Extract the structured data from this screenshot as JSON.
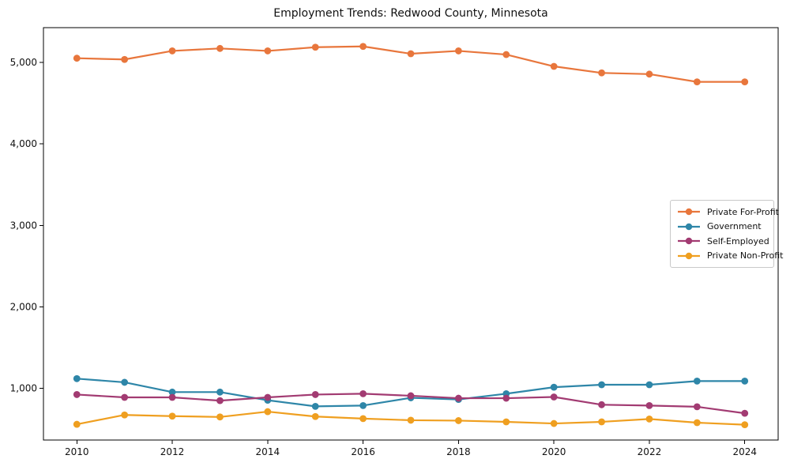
{
  "chart_data": {
    "type": "line",
    "title": "Employment Trends: Redwood County, Minnesota",
    "x": [
      2010,
      2011,
      2012,
      2013,
      2014,
      2015,
      2016,
      2017,
      2018,
      2019,
      2020,
      2021,
      2022,
      2023,
      2024
    ],
    "series": [
      {
        "name": "Private For-Profit",
        "color": "#E8763C",
        "values": [
          5050,
          5035,
          5140,
          5170,
          5140,
          5185,
          5195,
          5105,
          5140,
          5095,
          4950,
          4870,
          4855,
          4760,
          4760
        ]
      },
      {
        "name": "Government",
        "color": "#2E86A8",
        "values": [
          1120,
          1075,
          955,
          955,
          855,
          780,
          790,
          885,
          865,
          935,
          1015,
          1045,
          1045,
          1090,
          1090
        ]
      },
      {
        "name": "Self-Employed",
        "color": "#A23B72",
        "values": [
          925,
          890,
          890,
          850,
          890,
          925,
          935,
          910,
          880,
          880,
          895,
          800,
          790,
          775,
          695
        ]
      },
      {
        "name": "Private Non-Profit",
        "color": "#EF9F20",
        "values": [
          560,
          675,
          660,
          650,
          715,
          655,
          630,
          610,
          605,
          590,
          570,
          590,
          625,
          580,
          555
        ]
      }
    ],
    "xticks": [
      2010,
      2012,
      2014,
      2016,
      2018,
      2020,
      2022,
      2024
    ],
    "xtick_labels": [
      "2010",
      "2012",
      "2014",
      "2016",
      "2018",
      "2020",
      "2022",
      "2024"
    ],
    "yticks": [
      1000,
      2000,
      3000,
      4000,
      5000
    ],
    "ytick_labels": [
      "1,000",
      "2,000",
      "3,000",
      "4,000",
      "5,000"
    ],
    "xlim": [
      2009.3,
      2024.7
    ],
    "ylim": [
      367,
      5425
    ],
    "xlabel": "",
    "ylabel": "",
    "grid": false,
    "legend_position": "center right"
  }
}
